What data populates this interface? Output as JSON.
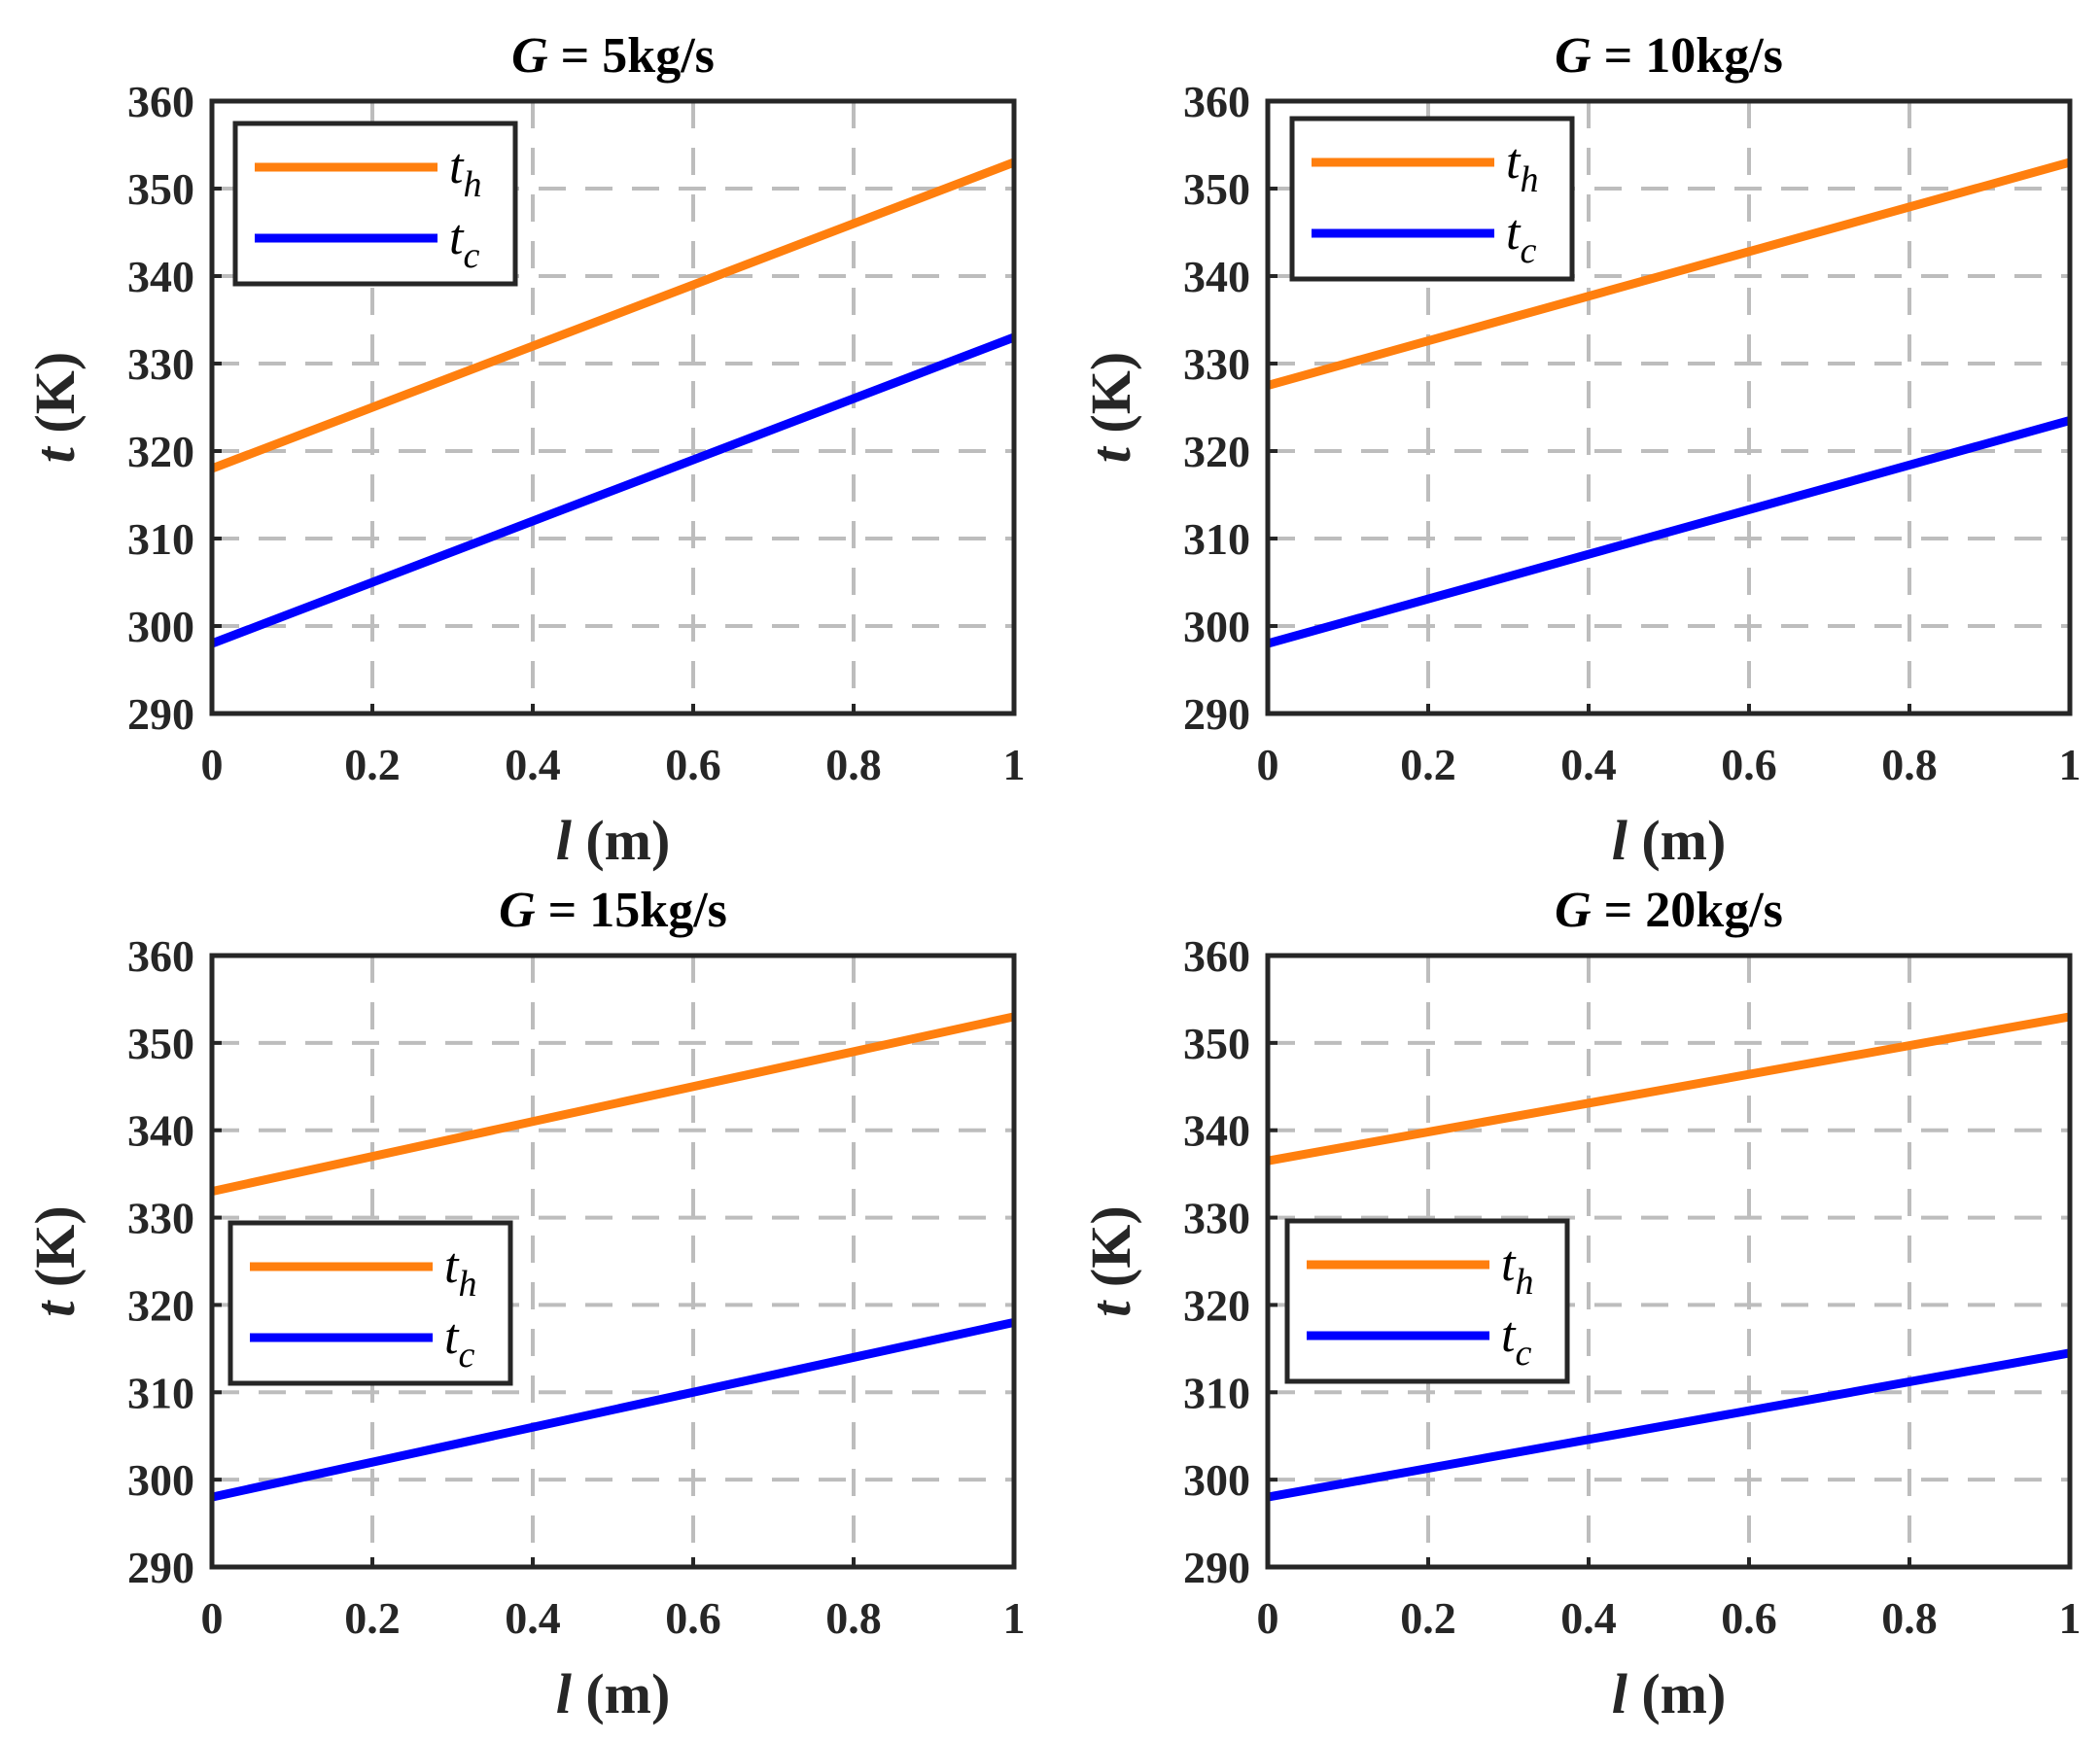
{
  "chart_data": [
    {
      "type": "line",
      "title_var": "G",
      "title_rest": " = 5kg/s",
      "xlabel_var": "l",
      "xlabel_unit": " (m)",
      "ylabel_var": "t",
      "ylabel_unit": " (K)",
      "xlim": [
        0,
        1
      ],
      "ylim": [
        290,
        360
      ],
      "xticks": [
        "0",
        "0.2",
        "0.4",
        "0.6",
        "0.8",
        "1"
      ],
      "yticks": [
        "290",
        "300",
        "310",
        "320",
        "330",
        "340",
        "350",
        "360"
      ],
      "legend_position": "top-left",
      "series": [
        {
          "name": "t",
          "sub": "h",
          "color": "#ff7f0e",
          "x": [
            0,
            1
          ],
          "y": [
            318,
            353
          ]
        },
        {
          "name": "t",
          "sub": "c",
          "color": "#0000ff",
          "x": [
            0,
            1
          ],
          "y": [
            298,
            333
          ]
        }
      ]
    },
    {
      "type": "line",
      "title_var": "G",
      "title_rest": " = 10kg/s",
      "xlabel_var": "l",
      "xlabel_unit": " (m)",
      "ylabel_var": "t",
      "ylabel_unit": " (K)",
      "xlim": [
        0,
        1
      ],
      "ylim": [
        290,
        360
      ],
      "xticks": [
        "0",
        "0.2",
        "0.4",
        "0.6",
        "0.8",
        "1"
      ],
      "yticks": [
        "290",
        "300",
        "310",
        "320",
        "330",
        "340",
        "350",
        "360"
      ],
      "legend_position": "top-left",
      "series": [
        {
          "name": "t",
          "sub": "h",
          "color": "#ff7f0e",
          "x": [
            0,
            1
          ],
          "y": [
            327.5,
            353
          ]
        },
        {
          "name": "t",
          "sub": "c",
          "color": "#0000ff",
          "x": [
            0,
            1
          ],
          "y": [
            298,
            323.5
          ]
        }
      ]
    },
    {
      "type": "line",
      "title_var": "G",
      "title_rest": " = 15kg/s",
      "xlabel_var": "l",
      "xlabel_unit": " (m)",
      "ylabel_var": "t",
      "ylabel_unit": " (K)",
      "xlim": [
        0,
        1
      ],
      "ylim": [
        290,
        360
      ],
      "xticks": [
        "0",
        "0.2",
        "0.4",
        "0.6",
        "0.8",
        "1"
      ],
      "yticks": [
        "290",
        "300",
        "310",
        "320",
        "330",
        "340",
        "350",
        "360"
      ],
      "legend_position": "middle-left",
      "series": [
        {
          "name": "t",
          "sub": "h",
          "color": "#ff7f0e",
          "x": [
            0,
            1
          ],
          "y": [
            333,
            353
          ]
        },
        {
          "name": "t",
          "sub": "c",
          "color": "#0000ff",
          "x": [
            0,
            1
          ],
          "y": [
            298,
            318
          ]
        }
      ]
    },
    {
      "type": "line",
      "title_var": "G",
      "title_rest": " = 20kg/s",
      "xlabel_var": "l",
      "xlabel_unit": " (m)",
      "ylabel_var": "t",
      "ylabel_unit": " (K)",
      "xlim": [
        0,
        1
      ],
      "ylim": [
        290,
        360
      ],
      "xticks": [
        "0",
        "0.2",
        "0.4",
        "0.6",
        "0.8",
        "1"
      ],
      "yticks": [
        "290",
        "300",
        "310",
        "320",
        "330",
        "340",
        "350",
        "360"
      ],
      "legend_position": "middle-left",
      "series": [
        {
          "name": "t",
          "sub": "h",
          "color": "#ff7f0e",
          "x": [
            0,
            1
          ],
          "y": [
            336.5,
            353
          ]
        },
        {
          "name": "t",
          "sub": "c",
          "color": "#0000ff",
          "x": [
            0,
            1
          ],
          "y": [
            298,
            314.5
          ]
        }
      ]
    }
  ]
}
